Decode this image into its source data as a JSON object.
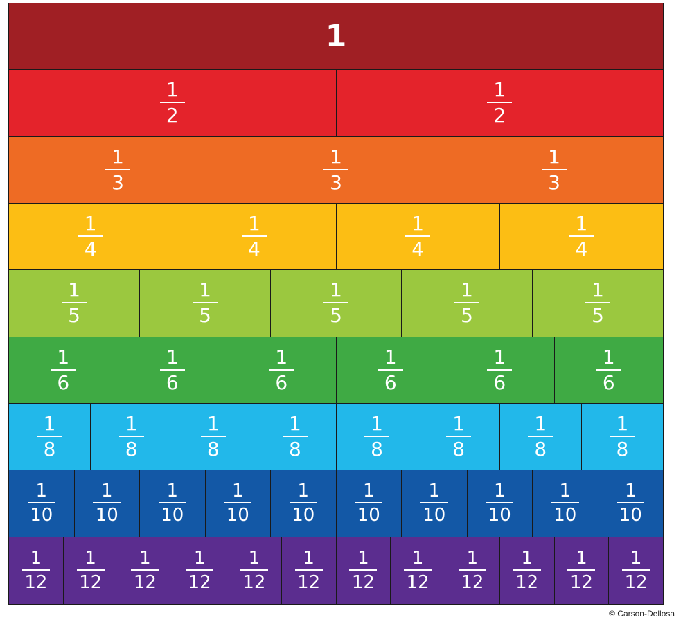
{
  "rows": [
    {
      "denominator": "1",
      "parts": 1,
      "color": "#A01F24",
      "text_color": "#ffffff"
    },
    {
      "denominator": "2",
      "parts": 2,
      "color": "#E4232B",
      "text_color": "#ffffff"
    },
    {
      "denominator": "3",
      "parts": 3,
      "color": "#EE6B24",
      "text_color": "#ffffff"
    },
    {
      "denominator": "4",
      "parts": 4,
      "color": "#FCBE14",
      "text_color": "#ffffff"
    },
    {
      "denominator": "5",
      "parts": 5,
      "color": "#9BC83F",
      "text_color": "#ffffff"
    },
    {
      "denominator": "6",
      "parts": 6,
      "color": "#3FAA44",
      "text_color": "#ffffff"
    },
    {
      "denominator": "8",
      "parts": 8,
      "color": "#22B8EA",
      "text_color": "#ffffff"
    },
    {
      "denominator": "10",
      "parts": 10,
      "color": "#1358A6",
      "text_color": "#ffffff"
    },
    {
      "denominator": "12",
      "parts": 12,
      "color": "#5B2D8F",
      "text_color": "#ffffff"
    }
  ],
  "numerator": "1",
  "whole_label": "1",
  "copyright": "© Carson-Dellosa"
}
